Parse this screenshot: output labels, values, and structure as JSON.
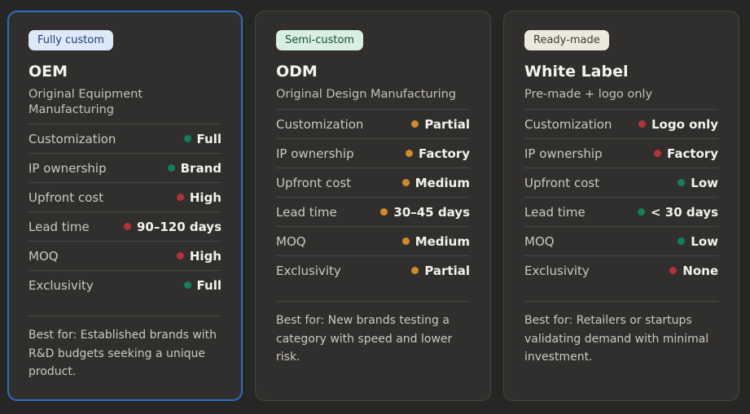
{
  "cards": [
    {
      "badge": "Fully custom",
      "badge_color": "#dde9f8",
      "title": "OEM",
      "subtitle": "Original Equipment Manufacturing",
      "selected": true,
      "rows": [
        {
          "label": "Customization",
          "value": "Full",
          "status": "green"
        },
        {
          "label": "IP ownership",
          "value": "Brand",
          "status": "green"
        },
        {
          "label": "Upfront cost",
          "value": "High",
          "status": "red"
        },
        {
          "label": "Lead time",
          "value": "90–120 days",
          "status": "red"
        },
        {
          "label": "MOQ",
          "value": "High",
          "status": "red"
        },
        {
          "label": "Exclusivity",
          "value": "Full",
          "status": "green"
        }
      ],
      "best_for": "Best for: Established brands with R&D budgets seeking a unique product."
    },
    {
      "badge": "Semi-custom",
      "badge_color": "#d8efe1",
      "title": "ODM",
      "subtitle": "Original Design Manufacturing",
      "selected": false,
      "rows": [
        {
          "label": "Customization",
          "value": "Partial",
          "status": "orange"
        },
        {
          "label": "IP ownership",
          "value": "Factory",
          "status": "orange"
        },
        {
          "label": "Upfront cost",
          "value": "Medium",
          "status": "orange"
        },
        {
          "label": "Lead time",
          "value": "30–45 days",
          "status": "orange"
        },
        {
          "label": "MOQ",
          "value": "Medium",
          "status": "orange"
        },
        {
          "label": "Exclusivity",
          "value": "Partial",
          "status": "orange"
        }
      ],
      "best_for": "Best for: New brands testing a category with speed and lower risk."
    },
    {
      "badge": "Ready-made",
      "badge_color": "#ece8de",
      "title": "White Label",
      "subtitle": "Pre-made + logo only",
      "selected": false,
      "rows": [
        {
          "label": "Customization",
          "value": "Logo only",
          "status": "red"
        },
        {
          "label": "IP ownership",
          "value": "Factory",
          "status": "red"
        },
        {
          "label": "Upfront cost",
          "value": "Low",
          "status": "green"
        },
        {
          "label": "Lead time",
          "value": "< 30 days",
          "status": "green"
        },
        {
          "label": "MOQ",
          "value": "Low",
          "status": "green"
        },
        {
          "label": "Exclusivity",
          "value": "None",
          "status": "red"
        }
      ],
      "best_for": "Best for: Retailers or startups validating demand with minimal investment."
    }
  ],
  "status_colors": {
    "green": "#14805a",
    "orange": "#d08a2a",
    "red": "#b3323a"
  }
}
